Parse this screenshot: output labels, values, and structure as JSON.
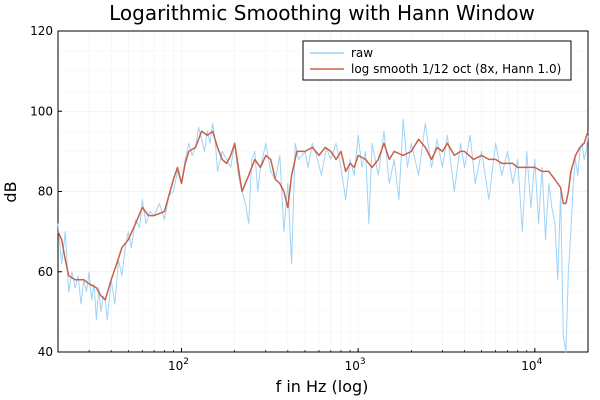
{
  "chart_data": {
    "type": "line",
    "title": "Logarithmic Smoothing with Hann Window",
    "xlabel": "f in Hz (log)",
    "ylabel": "dB",
    "xscale": "log",
    "xlim": [
      20,
      20000
    ],
    "ylim": [
      40,
      120
    ],
    "grid": true,
    "legend_position": "top-right",
    "x_ticks": [
      {
        "base": "10",
        "exp": "2",
        "value": 100
      },
      {
        "base": "10",
        "exp": "3",
        "value": 1000
      },
      {
        "base": "10",
        "exp": "4",
        "value": 10000
      }
    ],
    "y_ticks": [
      {
        "label": "40",
        "value": 40
      },
      {
        "label": "60",
        "value": 60
      },
      {
        "label": "80",
        "value": 80
      },
      {
        "label": "100",
        "value": 100
      },
      {
        "label": "120",
        "value": 120
      }
    ],
    "series": [
      {
        "name": "raw",
        "color": "#9fd3f5",
        "x": [
          20,
          21,
          22,
          23,
          24,
          25,
          26,
          27,
          28,
          29,
          30,
          31,
          32,
          33,
          34,
          35,
          36,
          37,
          38,
          40,
          42,
          44,
          46,
          48,
          50,
          52,
          55,
          58,
          60,
          63,
          66,
          70,
          75,
          80,
          85,
          90,
          95,
          100,
          105,
          110,
          115,
          120,
          125,
          130,
          135,
          140,
          145,
          150,
          155,
          160,
          170,
          180,
          190,
          200,
          210,
          220,
          230,
          240,
          250,
          260,
          270,
          280,
          300,
          320,
          340,
          360,
          380,
          400,
          420,
          440,
          460,
          500,
          520,
          550,
          580,
          620,
          660,
          700,
          750,
          800,
          850,
          900,
          950,
          1000,
          1050,
          1100,
          1150,
          1200,
          1300,
          1400,
          1500,
          1600,
          1700,
          1800,
          1900,
          2000,
          2200,
          2400,
          2600,
          2800,
          3000,
          3200,
          3500,
          3800,
          4000,
          4300,
          4600,
          5000,
          5500,
          6000,
          6500,
          7000,
          7500,
          8000,
          8500,
          9000,
          9500,
          10000,
          10500,
          11000,
          11500,
          12000,
          12500,
          13000,
          13500,
          14000,
          14500,
          15000,
          15500,
          16000,
          16500,
          17000,
          17500,
          18000,
          18500,
          19000,
          19500,
          20000
        ],
        "y": [
          72,
          62,
          70,
          55,
          60,
          56,
          59,
          52,
          58,
          55,
          60,
          53,
          57,
          48,
          56,
          50,
          54,
          53,
          48,
          58,
          52,
          63,
          59,
          66,
          70,
          66,
          73,
          71,
          78,
          72,
          75,
          74,
          77,
          73,
          79,
          80,
          85,
          82,
          88,
          92,
          89,
          91,
          96,
          93,
          90,
          95,
          92,
          97,
          93,
          85,
          90,
          88,
          86,
          92,
          84,
          80,
          77,
          72,
          88,
          90,
          80,
          86,
          92,
          85,
          83,
          89,
          70,
          82,
          62,
          92,
          88,
          90,
          86,
          92,
          89,
          84,
          91,
          88,
          92,
          86,
          78,
          88,
          84,
          94,
          86,
          90,
          72,
          92,
          84,
          95,
          82,
          88,
          78,
          98,
          86,
          92,
          84,
          97,
          86,
          93,
          86,
          94,
          80,
          92,
          86,
          94,
          82,
          90,
          78,
          92,
          84,
          90,
          82,
          88,
          70,
          90,
          76,
          88,
          72,
          86,
          68,
          82,
          76,
          72,
          58,
          80,
          44,
          40,
          60,
          70,
          82,
          88,
          84,
          90,
          92,
          88,
          90,
          94
        ]
      },
      {
        "name": "log smooth 1/12 oct (8x, Hann 1.0)",
        "color": "#c8604a",
        "x": [
          20,
          21,
          22,
          23,
          25,
          28,
          30,
          33,
          35,
          37,
          40,
          43,
          46,
          50,
          55,
          60,
          65,
          70,
          80,
          90,
          95,
          100,
          105,
          110,
          120,
          130,
          140,
          150,
          160,
          170,
          180,
          190,
          200,
          220,
          240,
          260,
          280,
          300,
          320,
          340,
          360,
          380,
          400,
          420,
          450,
          500,
          550,
          600,
          650,
          700,
          750,
          800,
          850,
          900,
          950,
          1000,
          1100,
          1200,
          1300,
          1400,
          1500,
          1600,
          1800,
          2000,
          2200,
          2400,
          2600,
          2800,
          3000,
          3200,
          3500,
          3800,
          4000,
          4500,
          5000,
          5500,
          6000,
          6500,
          7000,
          7500,
          8000,
          8500,
          9000,
          10000,
          11000,
          12000,
          13000,
          14000,
          14500,
          15000,
          15500,
          16000,
          17000,
          18000,
          19000,
          20000
        ],
        "y": [
          70,
          68,
          63,
          59,
          58,
          58,
          57,
          56,
          54,
          53,
          58,
          62,
          66,
          68,
          72,
          76,
          74,
          74,
          75,
          83,
          86,
          82,
          87,
          90,
          91,
          95,
          94,
          95,
          91,
          88,
          87,
          89,
          92,
          80,
          84,
          88,
          86,
          89,
          88,
          83,
          82,
          80,
          76,
          84,
          90,
          90,
          91,
          89,
          91,
          90,
          88,
          90,
          85,
          87,
          86,
          89,
          88,
          86,
          88,
          92,
          88,
          90,
          89,
          90,
          93,
          91,
          88,
          91,
          90,
          92,
          89,
          90,
          90,
          88,
          89,
          88,
          88,
          87,
          87,
          87,
          86,
          86,
          86,
          86,
          85,
          85,
          83,
          81,
          77,
          77,
          80,
          85,
          89,
          91,
          92,
          95
        ]
      }
    ]
  }
}
